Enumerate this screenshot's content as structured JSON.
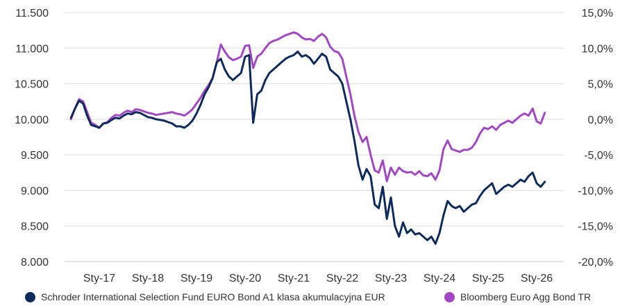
{
  "chart_data": {
    "type": "line",
    "x_ticks": [
      "Sty-17",
      "Sty-18",
      "Sty-19",
      "Sty-20",
      "Sty-21",
      "Sty-22",
      "Sty-23",
      "Sty-24",
      "Sty-25",
      "Sty-26"
    ],
    "y_left": {
      "range": [
        8000,
        11500
      ],
      "ticks": [
        "8.000",
        "8.500",
        "9.000",
        "9.500",
        "10.000",
        "10.500",
        "11.000",
        "11.500"
      ]
    },
    "y_right": {
      "range": [
        -20,
        15
      ],
      "ticks": [
        "-20,0%",
        "-15,0%",
        "-10,0%",
        "-5,0%",
        "0,0%",
        "5,0%",
        "10,0%",
        "15,0%"
      ]
    },
    "grid": true,
    "legend_position": "bottom",
    "series": [
      {
        "name": "Schroder International Selection Fund EURO Bond A1 klasa akumulacyjna EUR",
        "color": "#0d2a5c",
        "axis": "left",
        "x": [
          "2016-06",
          "2016-07",
          "2016-08",
          "2016-09",
          "2016-10",
          "2016-11",
          "2016-12",
          "2017-01",
          "2017-02",
          "2017-03",
          "2017-04",
          "2017-05",
          "2017-06",
          "2017-07",
          "2017-08",
          "2017-09",
          "2017-10",
          "2017-11",
          "2017-12",
          "2018-01",
          "2018-02",
          "2018-03",
          "2018-04",
          "2018-05",
          "2018-06",
          "2018-07",
          "2018-08",
          "2018-09",
          "2018-10",
          "2018-11",
          "2018-12",
          "2019-01",
          "2019-02",
          "2019-03",
          "2019-04",
          "2019-05",
          "2019-06",
          "2019-07",
          "2019-08",
          "2019-09",
          "2019-10",
          "2019-11",
          "2019-12",
          "2020-01",
          "2020-02",
          "2020-03",
          "2020-04",
          "2020-05",
          "2020-06",
          "2020-07",
          "2020-08",
          "2020-09",
          "2020-10",
          "2020-11",
          "2020-12",
          "2021-01",
          "2021-02",
          "2021-03",
          "2021-04",
          "2021-05",
          "2021-06",
          "2021-07",
          "2021-08",
          "2021-09",
          "2021-10",
          "2021-11",
          "2021-12",
          "2022-01",
          "2022-02",
          "2022-03",
          "2022-04",
          "2022-05",
          "2022-06",
          "2022-07",
          "2022-08",
          "2022-09",
          "2022-10",
          "2022-11",
          "2022-12",
          "2023-01",
          "2023-02",
          "2023-03",
          "2023-04",
          "2023-05",
          "2023-06",
          "2023-07",
          "2023-08",
          "2023-09",
          "2023-10",
          "2023-11",
          "2023-12",
          "2024-01",
          "2024-02",
          "2024-03",
          "2024-04",
          "2024-05",
          "2024-06",
          "2024-07",
          "2024-08",
          "2024-09",
          "2024-10",
          "2024-11",
          "2024-12",
          "2025-01",
          "2025-02",
          "2025-03",
          "2025-04",
          "2025-05",
          "2025-06",
          "2025-07",
          "2025-08",
          "2025-09",
          "2025-10",
          "2025-11",
          "2025-12",
          "2026-01",
          "2026-02",
          "2026-03"
        ],
        "values": [
          10020,
          10150,
          10260,
          10220,
          10050,
          9920,
          9900,
          9880,
          9940,
          9950,
          9990,
          10020,
          10010,
          10050,
          10080,
          10070,
          10100,
          10090,
          10060,
          10030,
          10020,
          10000,
          9990,
          9980,
          9960,
          9940,
          9900,
          9900,
          9880,
          9920,
          9980,
          10080,
          10200,
          10350,
          10450,
          10580,
          10800,
          10850,
          10700,
          10600,
          10550,
          10600,
          10650,
          10880,
          10900,
          9950,
          10350,
          10400,
          10550,
          10650,
          10700,
          10750,
          10800,
          10850,
          10880,
          10900,
          10950,
          10880,
          10900,
          10860,
          10780,
          10850,
          10920,
          10880,
          10700,
          10650,
          10600,
          10500,
          10250,
          10000,
          9700,
          9350,
          9150,
          9300,
          9200,
          8800,
          8750,
          9050,
          8600,
          8900,
          8500,
          8350,
          8550,
          8400,
          8450,
          8380,
          8400,
          8350,
          8300,
          8350,
          8250,
          8400,
          8650,
          8850,
          8780,
          8750,
          8780,
          8700,
          8750,
          8800,
          8820,
          8920,
          9000,
          9050,
          9100,
          8950,
          9000,
          9050,
          9080,
          9050,
          9100,
          9150,
          9120,
          9200,
          9250,
          9100,
          9050,
          9120
        ]
      },
      {
        "name": "Bloomberg Euro Agg Bond TR",
        "color": "#a247c2",
        "axis": "right",
        "x": [
          "2016-06",
          "2016-07",
          "2016-08",
          "2016-09",
          "2016-10",
          "2016-11",
          "2016-12",
          "2017-01",
          "2017-02",
          "2017-03",
          "2017-04",
          "2017-05",
          "2017-06",
          "2017-07",
          "2017-08",
          "2017-09",
          "2017-10",
          "2017-11",
          "2017-12",
          "2018-01",
          "2018-02",
          "2018-03",
          "2018-04",
          "2018-05",
          "2018-06",
          "2018-07",
          "2018-08",
          "2018-09",
          "2018-10",
          "2018-11",
          "2018-12",
          "2019-01",
          "2019-02",
          "2019-03",
          "2019-04",
          "2019-05",
          "2019-06",
          "2019-07",
          "2019-08",
          "2019-09",
          "2019-10",
          "2019-11",
          "2019-12",
          "2020-01",
          "2020-02",
          "2020-03",
          "2020-04",
          "2020-05",
          "2020-06",
          "2020-07",
          "2020-08",
          "2020-09",
          "2020-10",
          "2020-11",
          "2020-12",
          "2021-01",
          "2021-02",
          "2021-03",
          "2021-04",
          "2021-05",
          "2021-06",
          "2021-07",
          "2021-08",
          "2021-09",
          "2021-10",
          "2021-11",
          "2021-12",
          "2022-01",
          "2022-02",
          "2022-03",
          "2022-04",
          "2022-05",
          "2022-06",
          "2022-07",
          "2022-08",
          "2022-09",
          "2022-10",
          "2022-11",
          "2022-12",
          "2023-01",
          "2023-02",
          "2023-03",
          "2023-04",
          "2023-05",
          "2023-06",
          "2023-07",
          "2023-08",
          "2023-09",
          "2023-10",
          "2023-11",
          "2023-12",
          "2024-01",
          "2024-02",
          "2024-03",
          "2024-04",
          "2024-05",
          "2024-06",
          "2024-07",
          "2024-08",
          "2024-09",
          "2024-10",
          "2024-11",
          "2024-12",
          "2025-01",
          "2025-02",
          "2025-03",
          "2025-04",
          "2025-05",
          "2025-06",
          "2025-07",
          "2025-08",
          "2025-09",
          "2025-10",
          "2025-11",
          "2025-12",
          "2026-01",
          "2026-02",
          "2026-03"
        ],
        "values": [
          0.0,
          1.5,
          2.8,
          2.5,
          1.0,
          -0.5,
          -0.8,
          -1.2,
          -0.6,
          -0.4,
          0.2,
          0.6,
          0.5,
          0.9,
          1.2,
          1.0,
          1.4,
          1.3,
          1.1,
          0.9,
          0.8,
          0.6,
          0.7,
          0.8,
          0.9,
          1.0,
          0.8,
          0.7,
          0.5,
          0.9,
          1.4,
          2.2,
          3.0,
          4.0,
          4.8,
          5.8,
          8.0,
          10.5,
          9.5,
          8.7,
          8.3,
          8.5,
          8.8,
          10.3,
          10.4,
          7.2,
          8.8,
          9.2,
          10.0,
          10.7,
          11.0,
          11.2,
          11.5,
          11.8,
          12.0,
          12.2,
          12.0,
          11.5,
          11.2,
          11.3,
          11.0,
          11.6,
          12.0,
          11.5,
          10.2,
          9.6,
          9.4,
          8.5,
          6.0,
          3.5,
          0.5,
          -1.8,
          -3.2,
          -2.5,
          -5.0,
          -7.2,
          -7.5,
          -5.8,
          -8.7,
          -6.8,
          -7.8,
          -6.8,
          -7.3,
          -7.5,
          -7.4,
          -7.8,
          -7.3,
          -7.9,
          -8.0,
          -7.6,
          -8.5,
          -7.2,
          -4.2,
          -3.0,
          -4.2,
          -4.4,
          -4.6,
          -4.3,
          -4.3,
          -4.0,
          -3.2,
          -2.0,
          -1.2,
          -1.4,
          -1.0,
          -1.5,
          -0.8,
          -0.5,
          -0.2,
          -0.5,
          0.0,
          0.5,
          0.8,
          0.5,
          1.5,
          -0.3,
          -0.6,
          0.9
        ]
      }
    ]
  }
}
